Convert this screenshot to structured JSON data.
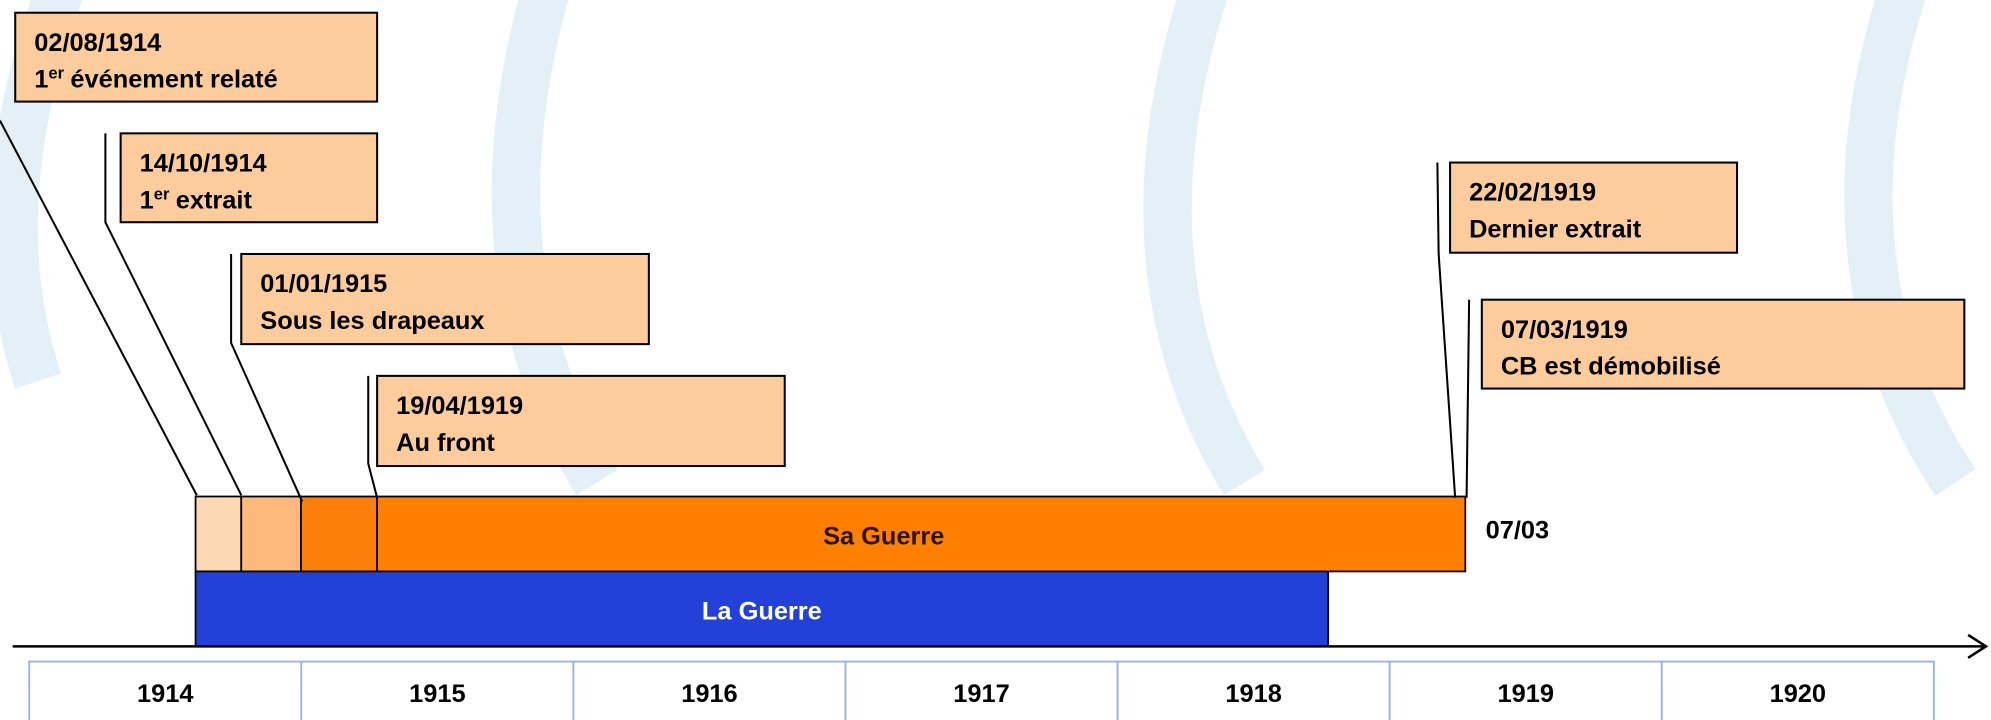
{
  "events": [
    {
      "date": "02/08/1914",
      "ordinal": "1",
      "ordinal_suffix": "er",
      "label": "événement relaté"
    },
    {
      "date": "14/10/1914",
      "ordinal": "1",
      "ordinal_suffix": "er",
      "label": "extrait"
    },
    {
      "date": "01/01/1915",
      "label": "Sous les drapeaux"
    },
    {
      "date": "19/04/1919",
      "label": "Au front"
    },
    {
      "date": "22/02/1919",
      "label": "Dernier extrait"
    },
    {
      "date": "07/03/1919",
      "label": "CB est démobilisé"
    }
  ],
  "bars": {
    "sa_guerre": "Sa Guerre",
    "la_guerre": "La Guerre",
    "end_label": "07/03"
  },
  "years": [
    "1914",
    "1915",
    "1916",
    "1917",
    "1918",
    "1919",
    "1920"
  ]
}
